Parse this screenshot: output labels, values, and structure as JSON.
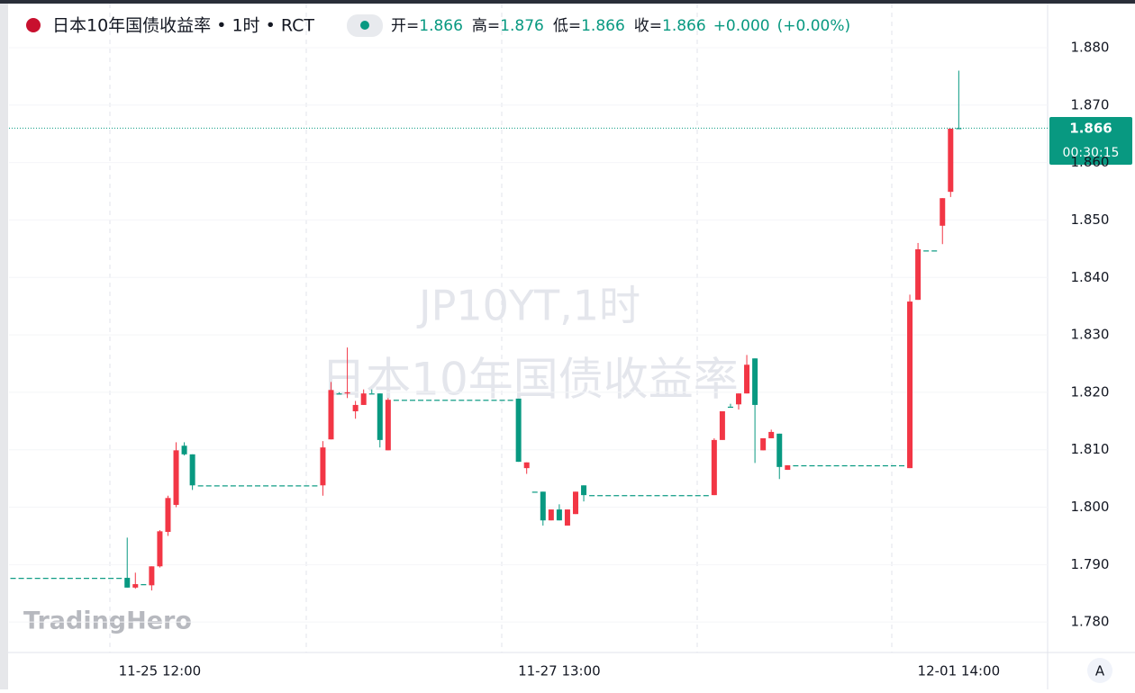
{
  "chart_data": {
    "type": "candlestick",
    "title": "日本10年国债收益率 • 1时 • RCT",
    "legend": {
      "open_label": "开=",
      "open": 1.866,
      "high_label": "高=",
      "high": 1.876,
      "low_label": "低=",
      "low": 1.866,
      "close_label": "收=",
      "close": 1.866,
      "change": {
        "value": 0,
        "label": "+0.000"
      },
      "change_pct": {
        "value": 0,
        "label": "(+0.00%)"
      }
    },
    "watermark": [
      "JP10YT,1时",
      "日本10年国债收益率"
    ],
    "logo": "TradingHero",
    "last_price": 1.866,
    "countdown": "00:30:15",
    "scale_mode": "A",
    "up_color": "#f23645",
    "down_color": "#089981",
    "xlim": [
      -0.5,
      126.9
    ],
    "xticks": [
      {
        "value": 18,
        "label": "11-25 12:00"
      },
      {
        "value": 67,
        "label": "11-27 13:00"
      },
      {
        "value": 116,
        "label": "12-01 14:00"
      }
    ],
    "ylim": [
      1.7747,
      1.8883
    ],
    "yticks": [
      {
        "value": 1.78,
        "label": "1.780"
      },
      {
        "value": 1.79,
        "label": "1.790"
      },
      {
        "value": 1.8,
        "label": "1.800"
      },
      {
        "value": 1.81,
        "label": "1.810"
      },
      {
        "value": 1.82,
        "label": "1.820"
      },
      {
        "value": 1.83,
        "label": "1.830"
      },
      {
        "value": 1.84,
        "label": "1.840"
      },
      {
        "value": 1.85,
        "label": "1.850"
      },
      {
        "value": 1.86,
        "label": "1.860"
      },
      {
        "value": 1.87,
        "label": "1.870"
      },
      {
        "value": 1.88,
        "label": "1.880"
      }
    ],
    "open": [
      1.7877,
      1.7877,
      1.7877,
      1.7877,
      1.7877,
      1.7877,
      1.7877,
      1.7877,
      1.7877,
      1.7877,
      1.7877,
      1.7877,
      1.7877,
      1.7877,
      1.7877,
      1.786,
      1.7866,
      1.7864,
      1.7897,
      1.7957,
      1.8004,
      1.8107,
      1.8092,
      1.8038,
      1.8038,
      1.8038,
      1.8038,
      1.8038,
      1.8038,
      1.8038,
      1.8038,
      1.8038,
      1.8038,
      1.8038,
      1.8038,
      1.8038,
      1.8038,
      1.8038,
      1.8038,
      1.8118,
      1.8198,
      1.8198,
      1.8167,
      1.8178,
      1.8198,
      1.8198,
      1.8099,
      1.8187,
      1.8187,
      1.8187,
      1.8187,
      1.8187,
      1.8187,
      1.8187,
      1.8187,
      1.8187,
      1.8187,
      1.8187,
      1.8187,
      1.8187,
      1.8187,
      1.8187,
      1.8189,
      1.8068,
      1.8027,
      1.8027,
      1.7977,
      1.7996,
      1.7968,
      1.7988,
      1.8038,
      1.8021,
      1.8021,
      1.8021,
      1.8021,
      1.8021,
      1.8021,
      1.8021,
      1.8021,
      1.8021,
      1.8021,
      1.8021,
      1.8021,
      1.8021,
      1.8021,
      1.8021,
      1.8021,
      1.8117,
      1.8175,
      1.8179,
      1.8198,
      1.8259,
      1.8099,
      1.812,
      1.8128,
      1.8065,
      1.8073,
      1.8073,
      1.8073,
      1.8073,
      1.8073,
      1.8073,
      1.8073,
      1.8073,
      1.8073,
      1.8073,
      1.8073,
      1.8073,
      1.8073,
      1.8073,
      1.8068,
      1.8361,
      1.8447,
      1.8447,
      1.849,
      1.8549,
      1.866
    ],
    "high": [
      1.7877,
      1.7877,
      1.7877,
      1.7877,
      1.7877,
      1.7877,
      1.7877,
      1.7877,
      1.7877,
      1.7877,
      1.7877,
      1.7877,
      1.7877,
      1.7877,
      1.7947,
      1.7886,
      1.7866,
      1.7897,
      1.796,
      1.802,
      1.8113,
      1.8113,
      1.8092,
      1.8038,
      1.8038,
      1.8038,
      1.8038,
      1.8038,
      1.8038,
      1.8038,
      1.8038,
      1.8038,
      1.8038,
      1.8038,
      1.8038,
      1.8038,
      1.8038,
      1.8038,
      1.8115,
      1.8218,
      1.82,
      1.8278,
      1.8185,
      1.8205,
      1.8205,
      1.8198,
      1.819,
      1.8187,
      1.8187,
      1.8187,
      1.8187,
      1.8187,
      1.8187,
      1.8187,
      1.8187,
      1.8187,
      1.8187,
      1.8187,
      1.8187,
      1.8187,
      1.8187,
      1.8187,
      1.8189,
      1.8078,
      1.8027,
      1.8027,
      1.7996,
      1.8005,
      1.7996,
      1.8027,
      1.8038,
      1.8021,
      1.8021,
      1.8021,
      1.8021,
      1.8021,
      1.8021,
      1.8021,
      1.8021,
      1.8021,
      1.8021,
      1.8021,
      1.8021,
      1.8021,
      1.8021,
      1.8021,
      1.812,
      1.8167,
      1.818,
      1.8198,
      1.8265,
      1.8259,
      1.812,
      1.8135,
      1.8128,
      1.8073,
      1.8073,
      1.8073,
      1.8073,
      1.8073,
      1.8073,
      1.8073,
      1.8073,
      1.8073,
      1.8073,
      1.8073,
      1.8073,
      1.8073,
      1.8073,
      1.8073,
      1.837,
      1.846,
      1.8447,
      1.8447,
      1.8538,
      1.8659,
      1.876
    ],
    "low": [
      1.7877,
      1.7877,
      1.7877,
      1.7877,
      1.7877,
      1.7877,
      1.7877,
      1.7877,
      1.7877,
      1.7877,
      1.7877,
      1.7877,
      1.7877,
      1.7877,
      1.786,
      1.7858,
      1.7866,
      1.7855,
      1.7895,
      1.795,
      1.8,
      1.809,
      1.803,
      1.8038,
      1.8038,
      1.8038,
      1.8038,
      1.8038,
      1.8038,
      1.8038,
      1.8038,
      1.8038,
      1.8038,
      1.8038,
      1.8038,
      1.8038,
      1.8038,
      1.8038,
      1.802,
      1.8118,
      1.8198,
      1.819,
      1.8154,
      1.8178,
      1.8198,
      1.8104,
      1.8099,
      1.8187,
      1.8187,
      1.8187,
      1.8187,
      1.8187,
      1.8187,
      1.8187,
      1.8187,
      1.8187,
      1.8187,
      1.8187,
      1.8187,
      1.8187,
      1.8187,
      1.8187,
      1.8079,
      1.8058,
      1.8027,
      1.7968,
      1.7977,
      1.7977,
      1.7968,
      1.7988,
      1.801,
      1.8021,
      1.8021,
      1.8021,
      1.8021,
      1.8021,
      1.8021,
      1.8021,
      1.8021,
      1.8021,
      1.8021,
      1.8021,
      1.8021,
      1.8021,
      1.8021,
      1.8021,
      1.8021,
      1.8117,
      1.8175,
      1.817,
      1.8198,
      1.8077,
      1.8099,
      1.812,
      1.8049,
      1.8065,
      1.8073,
      1.8073,
      1.8073,
      1.8073,
      1.8073,
      1.8073,
      1.8073,
      1.8073,
      1.8073,
      1.8073,
      1.8073,
      1.8073,
      1.8073,
      1.8073,
      1.8068,
      1.8361,
      1.8447,
      1.8447,
      1.8458,
      1.854,
      1.866
    ],
    "close": [
      1.7877,
      1.7877,
      1.7877,
      1.7877,
      1.7877,
      1.7877,
      1.7877,
      1.7877,
      1.7877,
      1.7877,
      1.7877,
      1.7877,
      1.7877,
      1.7877,
      1.786,
      1.7866,
      1.7866,
      1.7897,
      1.7958,
      1.8016,
      1.8099,
      1.8092,
      1.8038,
      1.8038,
      1.8038,
      1.8038,
      1.8038,
      1.8038,
      1.8038,
      1.8038,
      1.8038,
      1.8038,
      1.8038,
      1.8038,
      1.8038,
      1.8038,
      1.8038,
      1.8038,
      1.8104,
      1.8204,
      1.8198,
      1.82,
      1.8178,
      1.8198,
      1.8198,
      1.8117,
      1.8187,
      1.8187,
      1.8187,
      1.8187,
      1.8187,
      1.8187,
      1.8187,
      1.8187,
      1.8187,
      1.8187,
      1.8187,
      1.8187,
      1.8187,
      1.8187,
      1.8187,
      1.8187,
      1.8079,
      1.8078,
      1.8027,
      1.7977,
      1.7996,
      1.7977,
      1.7996,
      1.8027,
      1.8021,
      1.8021,
      1.8021,
      1.8021,
      1.8021,
      1.8021,
      1.8021,
      1.8021,
      1.8021,
      1.8021,
      1.8021,
      1.8021,
      1.8021,
      1.8021,
      1.8021,
      1.8021,
      1.8117,
      1.8167,
      1.8175,
      1.8198,
      1.8248,
      1.8178,
      1.812,
      1.8131,
      1.807,
      1.8073,
      1.8073,
      1.8073,
      1.8073,
      1.8073,
      1.8073,
      1.8073,
      1.8073,
      1.8073,
      1.8073,
      1.8073,
      1.8073,
      1.8073,
      1.8073,
      1.8073,
      1.8358,
      1.8449,
      1.8447,
      1.8447,
      1.8538,
      1.8659,
      1.866
    ]
  }
}
